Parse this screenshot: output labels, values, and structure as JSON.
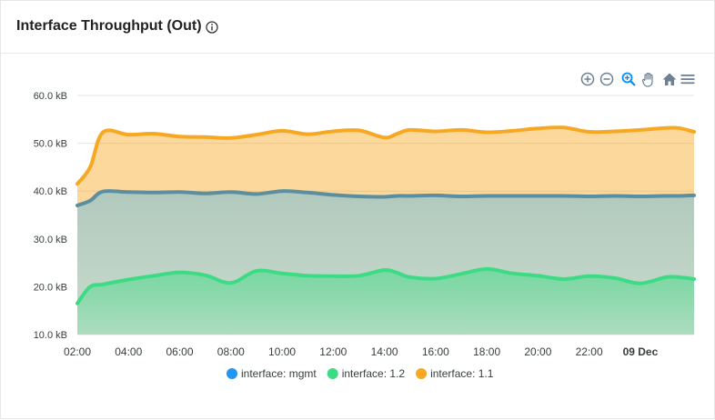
{
  "panel": {
    "title": "Interface Throughput (Out)"
  },
  "toolbar": {
    "icons": [
      "zoom-in-icon",
      "zoom-out-icon",
      "zoom-selection-icon",
      "pan-icon",
      "reset-home-icon",
      "menu-icon"
    ]
  },
  "colors": {
    "mgmt": "#2196f3",
    "if12": "#3ddc84",
    "if11": "#f7a823",
    "mgmt_line": "#5b8fa0"
  },
  "chart_data": {
    "type": "area",
    "title": "",
    "xlabel": "",
    "ylabel": "",
    "ylim": [
      10,
      60
    ],
    "y_ticks": [
      10,
      20,
      30,
      40,
      50,
      60
    ],
    "y_tick_labels": [
      "10.0 kB",
      "20.0 kB",
      "30.0 kB",
      "40.0 kB",
      "50.0 kB",
      "60.0 kB"
    ],
    "x_tick_labels": [
      "02:00",
      "04:00",
      "06:00",
      "08:00",
      "10:00",
      "12:00",
      "14:00",
      "16:00",
      "18:00",
      "20:00",
      "22:00",
      "09 Dec"
    ],
    "x_tick_hours": [
      0,
      2,
      4,
      6,
      8,
      10,
      12,
      14,
      16,
      18,
      20,
      22
    ],
    "x_range_hours": [
      0,
      24.1
    ],
    "x": [
      0,
      0.5,
      1,
      2,
      3,
      4,
      5,
      6,
      7,
      8,
      9,
      10,
      11,
      12,
      12.5,
      13,
      14,
      15,
      16,
      17,
      18,
      19,
      20,
      21,
      22,
      23,
      23.5,
      24.1
    ],
    "legend_position": "bottom",
    "grid": true,
    "series": [
      {
        "name": "interface: mgmt",
        "values": [
          37,
          38,
          39.9,
          39.8,
          39.7,
          39.8,
          39.5,
          39.8,
          39.4,
          40,
          39.7,
          39.2,
          38.9,
          38.8,
          39,
          39,
          39.1,
          38.9,
          39,
          39,
          39,
          39,
          38.9,
          39,
          38.9,
          39,
          39,
          39.1
        ]
      },
      {
        "name": "interface: 1.2",
        "values": [
          16.5,
          20,
          20.5,
          21.5,
          22.3,
          23,
          22.4,
          20.8,
          23.3,
          22.8,
          22.3,
          22.2,
          22.3,
          23.5,
          22.9,
          22,
          21.7,
          22.7,
          23.7,
          22.8,
          22.3,
          21.6,
          22.2,
          21.8,
          20.7,
          22,
          22,
          21.6
        ]
      },
      {
        "name": "interface: 1.1",
        "values": [
          41.5,
          45,
          52.3,
          51.8,
          52,
          51.4,
          51.3,
          51.1,
          51.8,
          52.6,
          51.9,
          52.5,
          52.7,
          51.2,
          52,
          52.8,
          52.5,
          52.8,
          52.3,
          52.6,
          53.1,
          53.3,
          52.4,
          52.5,
          52.8,
          53.2,
          53.2,
          52.4
        ]
      }
    ]
  }
}
